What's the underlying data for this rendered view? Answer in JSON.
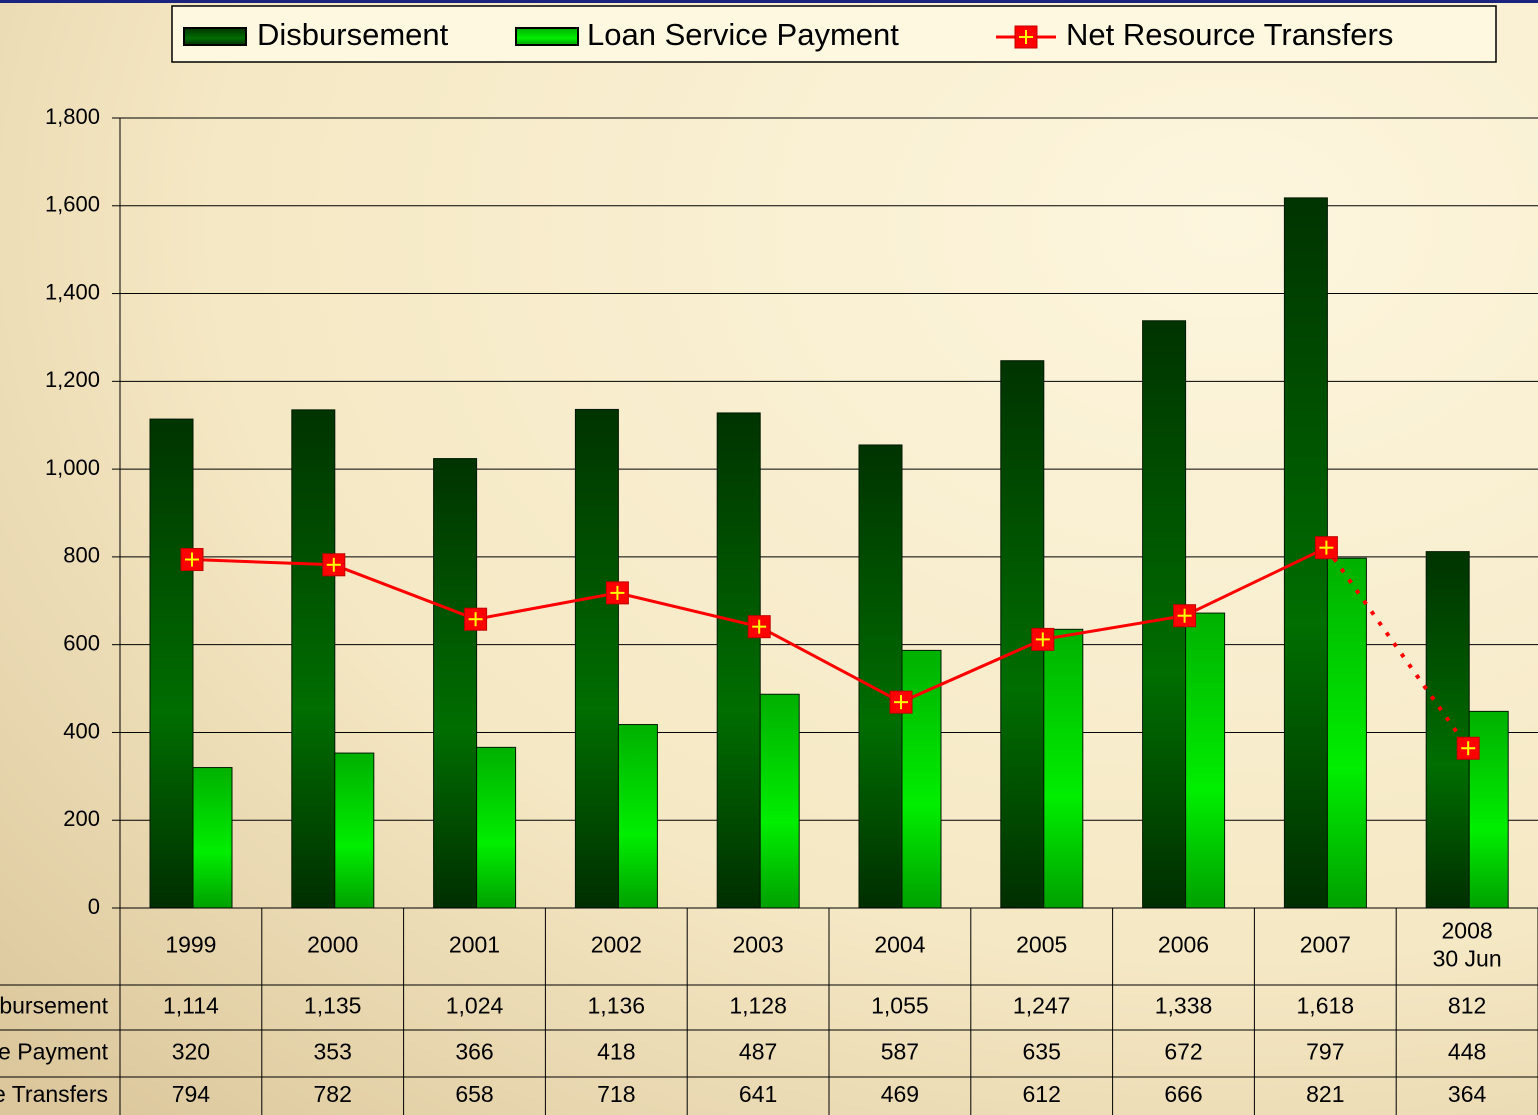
{
  "chart_data": {
    "type": "bar_line",
    "categories": [
      "1999",
      "2000",
      "2001",
      "2002",
      "2003",
      "2004",
      "2005",
      "2006",
      "2007",
      "2008\n30 Jun"
    ],
    "series": [
      {
        "name": "Disbursement",
        "type": "bar",
        "color": "#004d00",
        "values": [
          1114,
          1135,
          1024,
          1136,
          1128,
          1055,
          1247,
          1338,
          1618,
          812
        ],
        "value_labels": [
          "1,114",
          "1,135",
          "1,024",
          "1,136",
          "1,128",
          "1,055",
          "1,247",
          "1,338",
          "1,618",
          "812"
        ]
      },
      {
        "name": "Loan Service Payment",
        "type": "bar",
        "color": "#00cc00",
        "values": [
          320,
          353,
          366,
          418,
          487,
          587,
          635,
          672,
          797,
          448
        ]
      },
      {
        "name": "Net Resource Transfers",
        "type": "line",
        "color": "#ff0000",
        "dash_last_segment": true,
        "values": [
          794,
          782,
          658,
          718,
          641,
          469,
          612,
          666,
          821,
          364
        ]
      }
    ],
    "ylim": [
      0,
      1800
    ],
    "yticks": [
      0,
      200,
      400,
      600,
      800,
      {
        "value": 1000,
        "label": "1,000"
      },
      {
        "value": 1200,
        "label": "1,200"
      },
      {
        "value": 1400,
        "label": "1,400"
      },
      {
        "value": 1600,
        "label": "1,600"
      },
      {
        "value": 1800,
        "label": "1,800"
      }
    ],
    "grid": true,
    "legend": "top"
  }
}
